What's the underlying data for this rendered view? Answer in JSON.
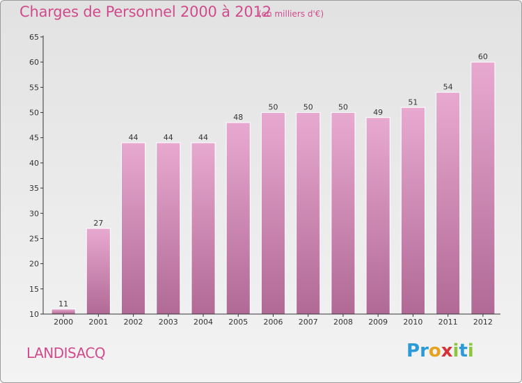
{
  "header": {
    "title": "Charges de Personnel 2000 à 2012",
    "subtitle": "(en milliers d'€)"
  },
  "footer": {
    "commune": "LANDISACQ",
    "logo_text": "Proxiti"
  },
  "colors": {
    "title": "#d14b8c",
    "bar_top": "#e8a9d0",
    "bar_bottom": "#b06a95",
    "axis": "#333333"
  },
  "chart_data": {
    "type": "bar",
    "title": "Charges de Personnel 2000 à 2012",
    "subtitle": "(en milliers d'€)",
    "xlabel": "",
    "ylabel": "",
    "categories": [
      "2000",
      "2001",
      "2002",
      "2003",
      "2004",
      "2005",
      "2006",
      "2007",
      "2008",
      "2009",
      "2010",
      "2011",
      "2012"
    ],
    "values": [
      11,
      27,
      44,
      44,
      44,
      48,
      50,
      50,
      50,
      49,
      51,
      54,
      60
    ],
    "ylim": [
      10,
      65
    ],
    "yticks": [
      10,
      15,
      20,
      25,
      30,
      35,
      40,
      45,
      50,
      55,
      60,
      65
    ],
    "grid": false,
    "data_labels": true
  }
}
